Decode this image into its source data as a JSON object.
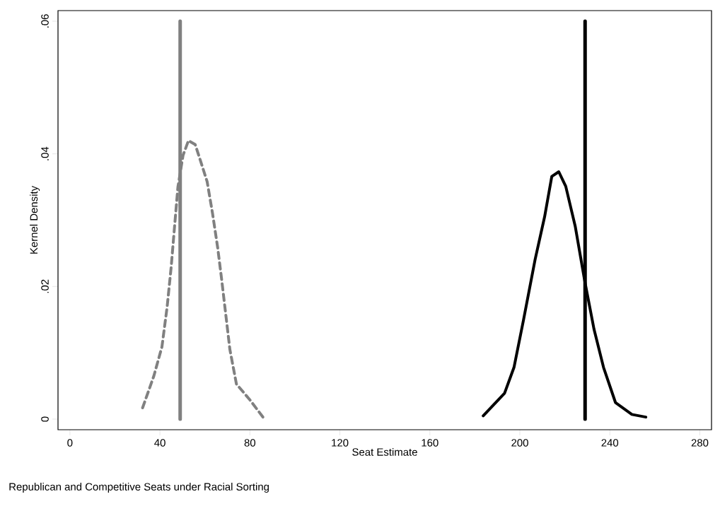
{
  "chart_data": {
    "type": "line",
    "xlabel": "Seat Estimate",
    "ylabel": "Kernel Density",
    "annotations": [
      "Republican and Competitive Seats under Racial Sorting"
    ],
    "xlim": [
      -5.3,
      285.2
    ],
    "ylim": [
      -0.0016,
      0.0616
    ],
    "xticks": [
      0,
      40,
      80,
      120,
      160,
      200,
      240,
      280
    ],
    "yticks": [
      {
        "value": 0,
        "label": "0"
      },
      {
        "value": 0.02,
        "label": ".02"
      },
      {
        "value": 0.04,
        "label": ".04"
      },
      {
        "value": 0.06,
        "label": ".06"
      }
    ],
    "grid": false,
    "marker": "none",
    "series": [
      {
        "color": "#808080",
        "line_style": "dashed",
        "x": [
          32.3,
          37.3,
          40.9,
          43.2,
          45,
          46.5,
          48,
          50.3,
          52.7,
          55.7,
          58,
          61,
          63.4,
          65.7,
          67.5,
          69.3,
          71.1,
          74,
          80,
          85.8
        ],
        "values": [
          0.0017,
          0.0065,
          0.0109,
          0.0169,
          0.0229,
          0.029,
          0.035,
          0.0398,
          0.042,
          0.0414,
          0.039,
          0.0358,
          0.031,
          0.0258,
          0.0209,
          0.0157,
          0.0105,
          0.0053,
          0.0029,
          0.0003
        ]
      },
      {
        "color": "#000000",
        "line_style": "solid",
        "x": [
          183.7,
          193.2,
          197.4,
          201.6,
          206.8,
          211,
          214.2,
          217.3,
          220.4,
          224.6,
          228.8,
          233,
          237.2,
          242.5,
          249.8,
          256
        ],
        "values": [
          0.0005,
          0.0039,
          0.0078,
          0.0149,
          0.0241,
          0.0305,
          0.0366,
          0.0373,
          0.0351,
          0.0291,
          0.0209,
          0.0135,
          0.0078,
          0.0025,
          0.0007,
          0.0003
        ]
      }
    ],
    "ref_lines": [
      {
        "axis": "x",
        "value": 49,
        "color": "#808080"
      },
      {
        "axis": "x",
        "value": 229,
        "color": "#000000"
      }
    ]
  }
}
